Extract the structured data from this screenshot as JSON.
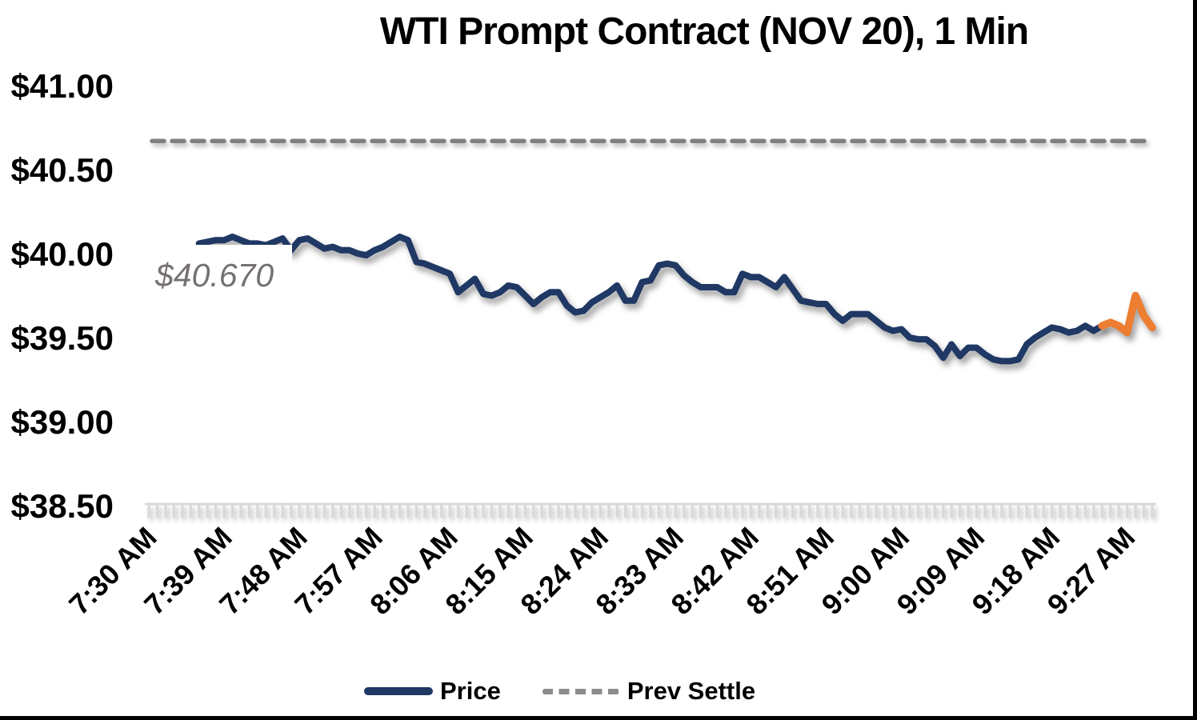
{
  "title": "WTI Prompt Contract (NOV 20), 1 Min",
  "legend": {
    "price_label": "Price",
    "prev_settle_label": "Prev Settle"
  },
  "chart_data": {
    "type": "line",
    "title": "WTI Prompt Contract (NOV 20), 1 Min",
    "xlabel": "",
    "ylabel": "",
    "ylim": [
      38.5,
      41.0
    ],
    "grid": false,
    "legend_position": "bottom",
    "y_ticks": [
      {
        "label": "$41.00",
        "value": 41.0
      },
      {
        "label": "$40.50",
        "value": 40.5
      },
      {
        "label": "$40.00",
        "value": 40.0
      },
      {
        "label": "$39.50",
        "value": 39.5
      },
      {
        "label": "$39.00",
        "value": 39.0
      },
      {
        "label": "$38.50",
        "value": 38.5
      }
    ],
    "x_tick_labels": [
      "7:30 AM",
      "7:39 AM",
      "7:48 AM",
      "7:57 AM",
      "8:06 AM",
      "8:15 AM",
      "8:24 AM",
      "8:33 AM",
      "8:42 AM",
      "8:51 AM",
      "9:00 AM",
      "9:09 AM",
      "9:18 AM",
      "9:27 AM"
    ],
    "x_tick_interval_minutes": 9,
    "x_total_minutes": 120,
    "minor_tick_every_minute": true,
    "prev_settle": {
      "name": "Prev Settle",
      "value": 40.67,
      "annotation": "$40.670"
    },
    "price_series": {
      "name": "Price",
      "start_offset_minutes": 6,
      "interval_minutes": 1,
      "highlight_start_index": 108,
      "values": [
        40.06,
        40.07,
        40.08,
        40.08,
        40.1,
        40.08,
        40.06,
        40.06,
        40.05,
        40.07,
        40.09,
        40.02,
        40.08,
        40.09,
        40.06,
        40.03,
        40.04,
        40.02,
        40.02,
        40.0,
        39.99,
        40.02,
        40.04,
        40.07,
        40.1,
        40.08,
        39.95,
        39.94,
        39.92,
        39.9,
        39.88,
        39.77,
        39.81,
        39.85,
        39.76,
        39.75,
        39.77,
        39.81,
        39.8,
        39.75,
        39.7,
        39.74,
        39.77,
        39.77,
        39.69,
        39.65,
        39.66,
        39.71,
        39.74,
        39.77,
        39.81,
        39.72,
        39.72,
        39.83,
        39.84,
        39.93,
        39.94,
        39.93,
        39.87,
        39.83,
        39.8,
        39.8,
        39.8,
        39.77,
        39.77,
        39.88,
        39.86,
        39.86,
        39.83,
        39.8,
        39.86,
        39.79,
        39.72,
        39.71,
        39.7,
        39.7,
        39.64,
        39.6,
        39.64,
        39.64,
        39.64,
        39.6,
        39.56,
        39.54,
        39.55,
        39.5,
        39.49,
        39.49,
        39.45,
        39.38,
        39.46,
        39.39,
        39.44,
        39.44,
        39.4,
        39.37,
        39.36,
        39.36,
        39.37,
        39.46,
        39.5,
        39.53,
        39.56,
        39.55,
        39.53,
        39.54,
        39.57,
        39.54,
        39.57,
        39.59,
        39.57,
        39.53,
        39.75,
        39.63,
        39.56
      ]
    },
    "colors": {
      "price": "#1F3864",
      "price_highlight": "#ED7D31",
      "prev_settle": "#808080",
      "axis_ticks": "#D9D9D9",
      "annotation_text": "#767171",
      "text": "#000000"
    }
  }
}
